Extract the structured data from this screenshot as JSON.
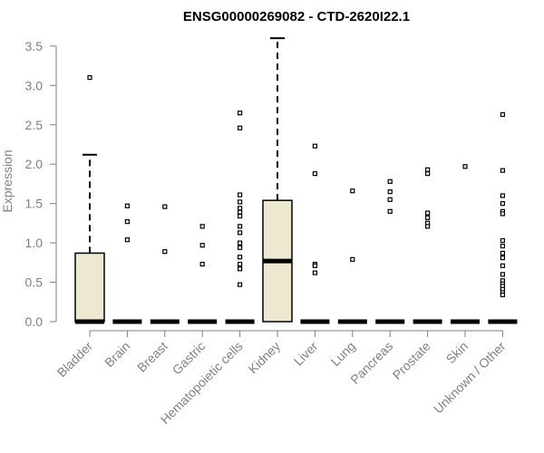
{
  "chart_data": {
    "type": "boxplot",
    "title": "ENSG00000269082 - CTD-2620I22.1",
    "xlabel": "",
    "ylabel": "Expression",
    "ylim": [
      0,
      3.6
    ],
    "yticks": [
      "0.0",
      "0.5",
      "1.0",
      "1.5",
      "2.0",
      "2.5",
      "3.0",
      "3.5"
    ],
    "categories": [
      "Bladder",
      "Brain",
      "Breast",
      "Gastric",
      "Hematopoietic cells",
      "Kidney",
      "Liver",
      "Lung",
      "Pancreas",
      "Prostate",
      "Skin",
      "Unknown / Other"
    ],
    "box_color": "#ede8d0",
    "boxes": [
      {
        "category": "Bladder",
        "whisker_low": 0,
        "q1": 0,
        "median": 0,
        "q3": 0.87,
        "whisker_high": 2.12,
        "outliers": [
          3.1
        ]
      },
      {
        "category": "Brain",
        "whisker_low": 0,
        "q1": 0,
        "median": 0,
        "q3": 0,
        "whisker_high": 0,
        "outliers": [
          1.47,
          1.27,
          1.04
        ]
      },
      {
        "category": "Breast",
        "whisker_low": 0,
        "q1": 0,
        "median": 0,
        "q3": 0,
        "whisker_high": 0,
        "outliers": [
          1.46,
          0.89
        ]
      },
      {
        "category": "Gastric",
        "whisker_low": 0,
        "q1": 0,
        "median": 0,
        "q3": 0,
        "whisker_high": 0,
        "outliers": [
          1.21,
          0.97,
          0.73
        ]
      },
      {
        "category": "Hematopoietic cells",
        "whisker_low": 0,
        "q1": 0,
        "median": 0,
        "q3": 0,
        "whisker_high": 0,
        "outliers": [
          2.65,
          2.46,
          1.61,
          1.52,
          1.44,
          1.39,
          1.34,
          1.21,
          1.13,
          1.0,
          0.94,
          0.82,
          0.73,
          0.67,
          0.47
        ]
      },
      {
        "category": "Kidney",
        "whisker_low": 0,
        "q1": 0,
        "median": 0.77,
        "q3": 1.54,
        "whisker_high": 3.6,
        "outliers": []
      },
      {
        "category": "Liver",
        "whisker_low": 0,
        "q1": 0,
        "median": 0,
        "q3": 0,
        "whisker_high": 0,
        "outliers": [
          2.23,
          1.88,
          0.73,
          0.71,
          0.62
        ]
      },
      {
        "category": "Lung",
        "whisker_low": 0,
        "q1": 0,
        "median": 0,
        "q3": 0,
        "whisker_high": 0,
        "outliers": [
          1.66,
          0.79
        ]
      },
      {
        "category": "Pancreas",
        "whisker_low": 0,
        "q1": 0,
        "median": 0,
        "q3": 0,
        "whisker_high": 0,
        "outliers": [
          1.78,
          1.65,
          1.55,
          1.4
        ]
      },
      {
        "category": "Prostate",
        "whisker_low": 0,
        "q1": 0,
        "median": 0,
        "q3": 0,
        "whisker_high": 0,
        "outliers": [
          1.93,
          1.88,
          1.38,
          1.32,
          1.25,
          1.21
        ]
      },
      {
        "category": "Skin",
        "whisker_low": 0,
        "q1": 0,
        "median": 0,
        "q3": 0,
        "whisker_high": 0,
        "outliers": [
          1.97
        ]
      },
      {
        "category": "Unknown / Other",
        "whisker_low": 0,
        "q1": 0,
        "median": 0,
        "q3": 0,
        "whisker_high": 0,
        "outliers": [
          2.63,
          1.92,
          1.6,
          1.5,
          1.4,
          1.37,
          1.03,
          0.96,
          0.87,
          0.81,
          0.71,
          0.6,
          0.52,
          0.48,
          0.45,
          0.41,
          0.37,
          0.34
        ]
      }
    ]
  }
}
